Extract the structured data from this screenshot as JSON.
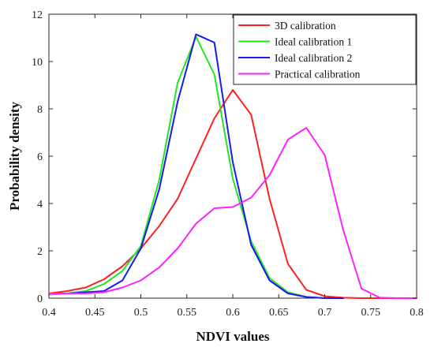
{
  "chart_data": {
    "type": "line",
    "xlabel": "NDVI values",
    "ylabel": "Probability density",
    "xlim": [
      0.4,
      0.8
    ],
    "ylim": [
      0,
      12
    ],
    "x_ticks": [
      "0.4",
      "0.45",
      "0.5",
      "0.55",
      "0.6",
      "0.65",
      "0.7",
      "0.75",
      "0.8"
    ],
    "y_ticks": [
      "0",
      "2",
      "4",
      "6",
      "8",
      "10",
      "12"
    ],
    "grid": false,
    "legend_position": "top-right",
    "series": [
      {
        "name": "3D calibration",
        "color": "#ff2020",
        "x": [
          0.4,
          0.42,
          0.44,
          0.46,
          0.48,
          0.5,
          0.52,
          0.54,
          0.56,
          0.58,
          0.6,
          0.62,
          0.64,
          0.66,
          0.68,
          0.7,
          0.72,
          0.74,
          0.76,
          0.78,
          0.8
        ],
        "y": [
          0.2,
          0.3,
          0.45,
          0.8,
          1.35,
          2.1,
          3.05,
          4.2,
          5.9,
          7.6,
          8.8,
          7.75,
          4.2,
          1.45,
          0.35,
          0.08,
          0.02,
          0.0,
          0.0,
          0.0,
          0.0
        ]
      },
      {
        "name": "Ideal calibration 1",
        "color": "#22e622",
        "x": [
          0.4,
          0.42,
          0.44,
          0.46,
          0.48,
          0.5,
          0.52,
          0.54,
          0.56,
          0.58,
          0.6,
          0.62,
          0.64,
          0.66,
          0.68,
          0.7,
          0.72
        ],
        "y": [
          0.15,
          0.2,
          0.3,
          0.6,
          1.15,
          2.2,
          5.0,
          9.1,
          11.05,
          9.45,
          5.05,
          2.4,
          0.85,
          0.25,
          0.05,
          0.0,
          0.0
        ]
      },
      {
        "name": "Ideal calibration 2",
        "color": "#1a1aee",
        "x": [
          0.4,
          0.42,
          0.44,
          0.46,
          0.48,
          0.5,
          0.52,
          0.54,
          0.56,
          0.58,
          0.6,
          0.62,
          0.64,
          0.66,
          0.68,
          0.7,
          0.72
        ],
        "y": [
          0.2,
          0.2,
          0.25,
          0.3,
          0.75,
          2.1,
          4.6,
          8.3,
          11.15,
          10.8,
          5.75,
          2.25,
          0.75,
          0.2,
          0.05,
          0.0,
          0.0
        ]
      },
      {
        "name": "Practical calibration",
        "color": "#ff22ff",
        "x": [
          0.4,
          0.42,
          0.44,
          0.46,
          0.48,
          0.5,
          0.52,
          0.54,
          0.56,
          0.58,
          0.6,
          0.62,
          0.64,
          0.66,
          0.68,
          0.7,
          0.72,
          0.74,
          0.76,
          0.78,
          0.8
        ],
        "y": [
          0.2,
          0.2,
          0.2,
          0.25,
          0.45,
          0.75,
          1.3,
          2.1,
          3.15,
          3.8,
          3.85,
          4.25,
          5.2,
          6.7,
          7.2,
          6.05,
          2.9,
          0.4,
          0.02,
          0.0,
          0.0
        ]
      }
    ]
  }
}
